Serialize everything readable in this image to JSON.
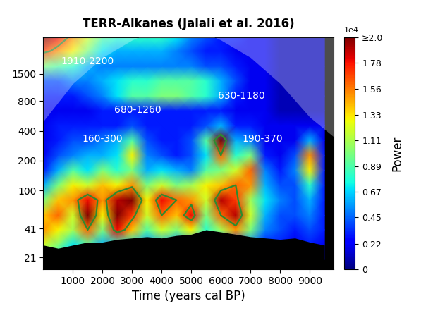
{
  "chart_data": {
    "type": "wavelet",
    "title": "TERR-Alkanes (Jalali et al. 2016)",
    "xlabel": "Time (years cal BP)",
    "log": "y",
    "xlim": [
      0,
      9800
    ],
    "xticks": [
      1000,
      2000,
      3000,
      4000,
      5000,
      6000,
      7000,
      8000,
      9000
    ],
    "ylim": [
      16,
      3500
    ],
    "yticks": [
      21,
      41,
      100,
      200,
      400,
      800,
      1500
    ],
    "x": [
      0,
      500,
      1000,
      1500,
      2000,
      2500,
      3000,
      3500,
      4000,
      4500,
      5000,
      5500,
      6000,
      6500,
      7000,
      7500,
      8000,
      8500,
      9000,
      9500
    ],
    "periods": [
      20,
      28,
      40,
      56,
      80,
      113,
      160,
      226,
      320,
      450,
      640,
      900,
      1280,
      1800,
      2560,
      3500
    ],
    "power": [
      [
        1.0,
        0.8,
        0.6,
        0.5,
        0.4,
        0.5,
        0.4,
        0.3,
        0.4,
        0.3,
        0.3,
        0.3,
        0.3,
        0.3,
        0.3,
        0.2,
        0.2,
        0.2,
        0.2,
        0.2
      ],
      [
        1.2,
        1.0,
        0.7,
        0.9,
        0.6,
        0.8,
        0.7,
        0.5,
        0.6,
        0.5,
        0.6,
        0.4,
        0.5,
        0.4,
        0.5,
        0.3,
        0.3,
        0.2,
        0.3,
        0.2
      ],
      [
        1.5,
        1.3,
        1.1,
        1.6,
        1.0,
        1.8,
        1.4,
        0.9,
        1.2,
        1.0,
        1.3,
        0.8,
        1.1,
        1.5,
        1.0,
        0.5,
        0.4,
        0.3,
        0.4,
        0.3
      ],
      [
        1.4,
        1.6,
        1.2,
        2.0,
        1.3,
        2.1,
        1.7,
        1.2,
        1.6,
        1.4,
        1.8,
        1.0,
        1.6,
        1.9,
        1.2,
        0.6,
        0.4,
        0.4,
        0.5,
        0.3
      ],
      [
        1.0,
        1.4,
        1.5,
        1.8,
        1.5,
        1.9,
        2.2,
        1.3,
        1.8,
        1.6,
        1.5,
        1.2,
        1.9,
        1.7,
        1.1,
        0.7,
        0.5,
        0.4,
        0.6,
        0.3
      ],
      [
        0.6,
        1.0,
        1.3,
        1.2,
        1.4,
        1.3,
        1.5,
        1.0,
        1.2,
        1.0,
        1.1,
        1.3,
        1.4,
        1.6,
        1.5,
        0.6,
        0.4,
        0.4,
        0.8,
        0.3
      ],
      [
        0.3,
        0.6,
        0.9,
        0.7,
        1.0,
        0.8,
        1.0,
        0.6,
        0.7,
        0.6,
        0.5,
        0.9,
        1.0,
        1.2,
        1.6,
        0.5,
        0.3,
        0.5,
        1.3,
        0.3
      ],
      [
        0.2,
        0.4,
        0.5,
        0.6,
        0.6,
        0.7,
        1.3,
        0.5,
        0.4,
        0.3,
        0.4,
        0.7,
        1.6,
        0.8,
        1.0,
        0.3,
        0.2,
        0.4,
        1.5,
        0.3
      ],
      [
        0.2,
        0.3,
        0.4,
        0.4,
        0.5,
        0.6,
        0.9,
        0.4,
        0.3,
        0.3,
        0.4,
        0.9,
        2.2,
        0.6,
        0.5,
        0.2,
        0.2,
        0.2,
        0.6,
        0.2
      ],
      [
        0.2,
        0.3,
        0.3,
        0.3,
        0.3,
        0.3,
        0.4,
        0.3,
        0.3,
        0.3,
        0.3,
        0.4,
        0.6,
        0.3,
        0.3,
        0.2,
        0.2,
        0.2,
        0.2,
        0.2
      ],
      [
        0.2,
        0.2,
        0.2,
        0.2,
        0.3,
        0.3,
        0.3,
        0.3,
        0.3,
        0.3,
        0.3,
        0.3,
        0.3,
        0.2,
        0.2,
        0.2,
        0.1,
        0.1,
        0.1,
        0.1
      ],
      [
        0.3,
        0.3,
        0.3,
        0.4,
        0.5,
        0.7,
        0.9,
        0.9,
        1.0,
        1.0,
        0.9,
        0.8,
        0.6,
        0.3,
        0.2,
        0.2,
        0.1,
        0.1,
        0.1,
        0.1
      ],
      [
        0.4,
        0.4,
        0.5,
        0.5,
        0.6,
        0.7,
        0.8,
        0.8,
        0.9,
        0.9,
        0.9,
        0.8,
        0.6,
        0.4,
        0.2,
        0.2,
        0.1,
        0.1,
        0.1,
        0.1
      ],
      [
        1.0,
        0.9,
        0.8,
        0.6,
        0.5,
        0.5,
        0.5,
        0.5,
        0.5,
        0.5,
        0.5,
        0.4,
        0.4,
        0.3,
        0.2,
        0.2,
        0.1,
        0.1,
        0.1,
        0.1
      ],
      [
        1.7,
        1.5,
        1.3,
        1.0,
        0.7,
        0.6,
        0.6,
        0.6,
        0.6,
        0.5,
        0.4,
        0.3,
        0.3,
        0.2,
        0.2,
        0.2,
        0.1,
        0.1,
        0.1,
        0.1
      ],
      [
        2.0,
        1.8,
        1.5,
        1.2,
        0.9,
        0.8,
        0.8,
        0.8,
        0.8,
        0.7,
        0.5,
        0.4,
        0.3,
        0.3,
        0.2,
        0.2,
        0.1,
        0.1,
        0.1,
        0.1
      ]
    ],
    "significance_level": 1.6,
    "floor": [
      28,
      26,
      28,
      30,
      30,
      32,
      33,
      34,
      33,
      35,
      36,
      40,
      38,
      36,
      34,
      33,
      32,
      33,
      30,
      28
    ],
    "coi": {
      "x": [
        0,
        1000,
        2000,
        3000,
        4000,
        5000,
        6000,
        7000,
        8000,
        9000,
        9800
      ],
      "period": [
        500,
        1200,
        2200,
        3300,
        4500,
        4500,
        3300,
        2200,
        1200,
        550,
        350
      ]
    },
    "annotations": [
      {
        "text": "1910-2200",
        "x": 1500,
        "y": 2000
      },
      {
        "text": "680-1260",
        "x": 3200,
        "y": 650
      },
      {
        "text": "630-1180",
        "x": 6700,
        "y": 900
      },
      {
        "text": "160-300",
        "x": 2000,
        "y": 330
      },
      {
        "text": "190-370",
        "x": 7400,
        "y": 330
      }
    ],
    "colorbar": {
      "label": "Power",
      "multiplier": "1e4",
      "range": [
        0,
        2.0
      ],
      "ticks": [
        0,
        0.22,
        0.45,
        0.67,
        0.89,
        1.11,
        1.33,
        1.56,
        1.78,
        {
          "value": 2.0,
          "label": "≥2.0"
        }
      ]
    }
  }
}
